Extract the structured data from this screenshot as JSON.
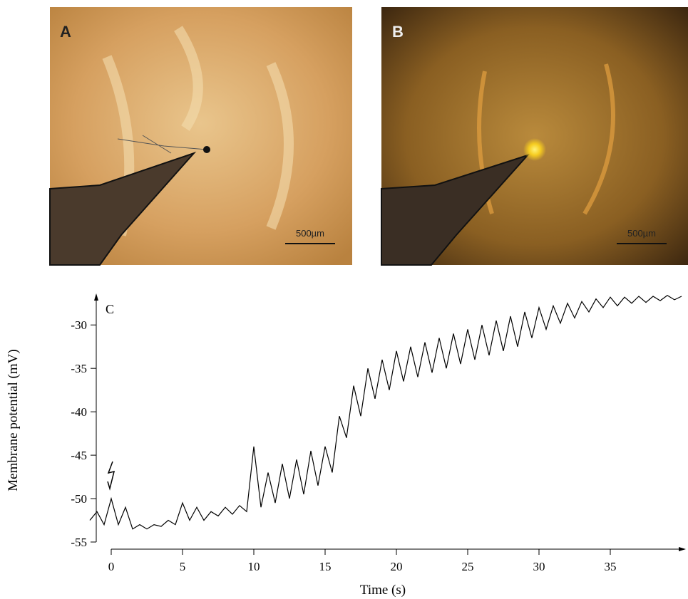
{
  "panels": [
    {
      "label": "A",
      "scale_bar": "500µm"
    },
    {
      "label": "B",
      "scale_bar": "500µm"
    }
  ],
  "chart_data": {
    "type": "line",
    "label": "C",
    "xlabel": "Time (s)",
    "ylabel": "Membrane potential (mV)",
    "color": "#000000",
    "x": [
      -1.5,
      -1,
      -0.5,
      0,
      0.5,
      1,
      1.5,
      2,
      2.5,
      3,
      3.5,
      4,
      4.5,
      5,
      5.5,
      6,
      6.5,
      7,
      7.5,
      8,
      8.5,
      9,
      9.5,
      10,
      10.5,
      11,
      11.5,
      12,
      12.5,
      13,
      13.5,
      14,
      14.5,
      15,
      15.5,
      16,
      16.5,
      17,
      17.5,
      18,
      18.5,
      19,
      19.5,
      20,
      20.5,
      21,
      21.5,
      22,
      22.5,
      23,
      23.5,
      24,
      24.5,
      25,
      25.5,
      26,
      26.5,
      27,
      27.5,
      28,
      28.5,
      29,
      29.5,
      30,
      30.5,
      31,
      31.5,
      32,
      32.5,
      33,
      33.5,
      34,
      34.5,
      35,
      35.5,
      36,
      36.5,
      37,
      37.5,
      38,
      38.5,
      39,
      39.5,
      40
    ],
    "values": [
      -52.5,
      -51.5,
      -53,
      -50,
      -53,
      -51,
      -53.5,
      -53,
      -53.5,
      -53,
      -53.2,
      -52.5,
      -53,
      -50.5,
      -52.5,
      -51,
      -52.5,
      -51.5,
      -52,
      -51,
      -51.8,
      -50.8,
      -51.5,
      -44,
      -51,
      -47,
      -50.5,
      -46,
      -50,
      -45.5,
      -49.5,
      -44.5,
      -48.5,
      -44,
      -47,
      -40.5,
      -43,
      -37,
      -40.5,
      -35,
      -38.5,
      -34,
      -37.5,
      -33,
      -36.5,
      -32.5,
      -36,
      -32,
      -35.5,
      -31.5,
      -35,
      -31,
      -34.5,
      -30.5,
      -34,
      -30,
      -33.5,
      -29.5,
      -33,
      -29,
      -32.5,
      -28.5,
      -31.5,
      -28,
      -30.5,
      -27.8,
      -29.8,
      -27.5,
      -29.2,
      -27.3,
      -28.5,
      -27,
      -28,
      -26.8,
      -27.8,
      -26.8,
      -27.5,
      -26.7,
      -27.4,
      -26.7,
      -27.2,
      -26.6,
      -27.1,
      -26.7
    ],
    "xlim": [
      -2,
      40.2
    ],
    "ylim": [
      -55,
      -26.7
    ],
    "xticks": [
      0,
      5,
      10,
      15,
      20,
      25,
      30,
      35
    ],
    "yticks": [
      -55,
      -50,
      -45,
      -40,
      -35,
      -30
    ]
  }
}
